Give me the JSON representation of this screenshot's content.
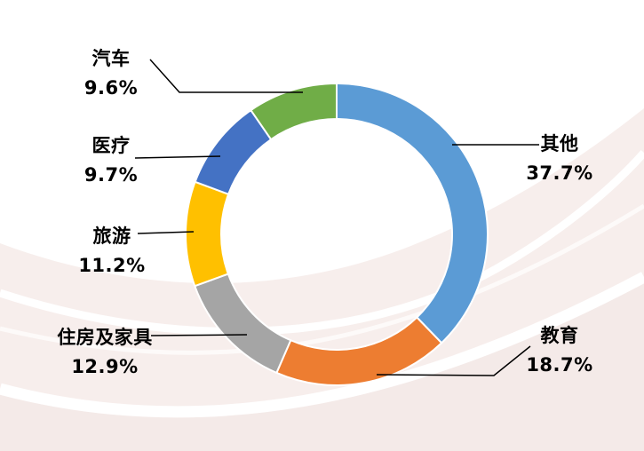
{
  "chart_data": {
    "type": "pie",
    "subtype": "donut",
    "title": "",
    "legend": "none",
    "start_angle_deg": 0,
    "direction": "clockwise",
    "labels_style": "outside-with-leader-lines",
    "slices": [
      {
        "label": "其他",
        "value": 37.7,
        "value_text": "37.7%",
        "color": "#5B9BD5"
      },
      {
        "label": "教育",
        "value": 18.7,
        "value_text": "18.7%",
        "color": "#ED7D31"
      },
      {
        "label": "住房及家具",
        "value": 12.9,
        "value_text": "12.9%",
        "color": "#A5A5A5"
      },
      {
        "label": "旅游",
        "value": 11.2,
        "value_text": "11.2%",
        "color": "#FFC000"
      },
      {
        "label": "医疗",
        "value": 9.7,
        "value_text": "9.7%",
        "color": "#4472C4"
      },
      {
        "label": "汽车",
        "value": 9.6,
        "value_text": "9.6%",
        "color": "#70AD47"
      }
    ]
  },
  "canvas": {
    "background_color": "#ffffff",
    "swoosh_tint": "#f6edeb",
    "slice_border_color": "#ffffff",
    "leader_line_color": "#000000",
    "label_text_color": "#000000"
  }
}
